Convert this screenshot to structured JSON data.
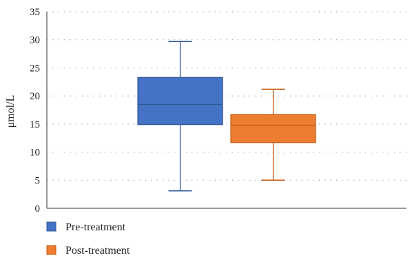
{
  "chart_data": {
    "type": "boxplot",
    "title": "",
    "xlabel": "",
    "ylabel": "μmol/L",
    "ylim": [
      0,
      35
    ],
    "yticks": [
      0,
      5,
      10,
      15,
      20,
      25,
      30,
      35
    ],
    "grid": true,
    "legend_position": "bottom-left",
    "series": [
      {
        "name": "Pre-treatment",
        "color": "#4472C4",
        "stroke": "#2F5597",
        "min": 3.1,
        "q1": 14.9,
        "median": 18.5,
        "q3": 23.3,
        "max": 29.7
      },
      {
        "name": "Post-treatment",
        "color": "#ED7D31",
        "stroke": "#C55A11",
        "min": 5.0,
        "q1": 11.7,
        "median": 14.8,
        "q3": 16.7,
        "max": 21.2
      }
    ]
  }
}
